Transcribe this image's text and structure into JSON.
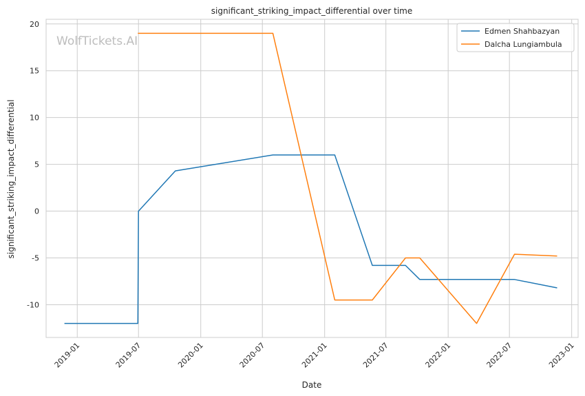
{
  "chart_data": {
    "type": "line",
    "title": "significant_striking_impact_differential over time",
    "xlabel": "Date",
    "ylabel": "significant_striking_impact_differential",
    "watermark": "WolfTickets.AI",
    "x_ticks": [
      "2019-01",
      "2019-07",
      "2020-01",
      "2020-07",
      "2021-01",
      "2021-07",
      "2022-01",
      "2022-07",
      "2023-01"
    ],
    "y_ticks": [
      -10,
      -5,
      0,
      5,
      10,
      15,
      20
    ],
    "xlim": [
      "2018-10-01",
      "2023-01-20"
    ],
    "ylim": [
      -13.5,
      20.5
    ],
    "grid": true,
    "legend_position": "top-right",
    "series": [
      {
        "name": "Edmen Shahbazyan",
        "color": "#1f77b4",
        "points": [
          {
            "x": "2018-11-24",
            "y": -12.0
          },
          {
            "x": "2019-06-29",
            "y": -12.0
          },
          {
            "x": "2019-07-01",
            "y": 0.0
          },
          {
            "x": "2019-10-18",
            "y": 4.3
          },
          {
            "x": "2020-08-01",
            "y": 6.0
          },
          {
            "x": "2021-01-31",
            "y": 6.0
          },
          {
            "x": "2021-05-22",
            "y": -5.8
          },
          {
            "x": "2021-08-28",
            "y": -5.8
          },
          {
            "x": "2021-10-09",
            "y": -7.3
          },
          {
            "x": "2022-07-16",
            "y": -7.3
          },
          {
            "x": "2022-11-19",
            "y": -8.2
          }
        ]
      },
      {
        "name": "Dalcha Lungiambula",
        "color": "#ff7f0e",
        "points": [
          {
            "x": "2019-06-29",
            "y": 19.0
          },
          {
            "x": "2020-08-01",
            "y": 19.0
          },
          {
            "x": "2021-01-31",
            "y": -9.5
          },
          {
            "x": "2021-05-22",
            "y": -9.5
          },
          {
            "x": "2021-08-28",
            "y": -5.0
          },
          {
            "x": "2021-10-09",
            "y": -5.0
          },
          {
            "x": "2022-03-26",
            "y": -12.0
          },
          {
            "x": "2022-07-16",
            "y": -4.6
          },
          {
            "x": "2022-11-19",
            "y": -4.8
          }
        ]
      }
    ]
  }
}
